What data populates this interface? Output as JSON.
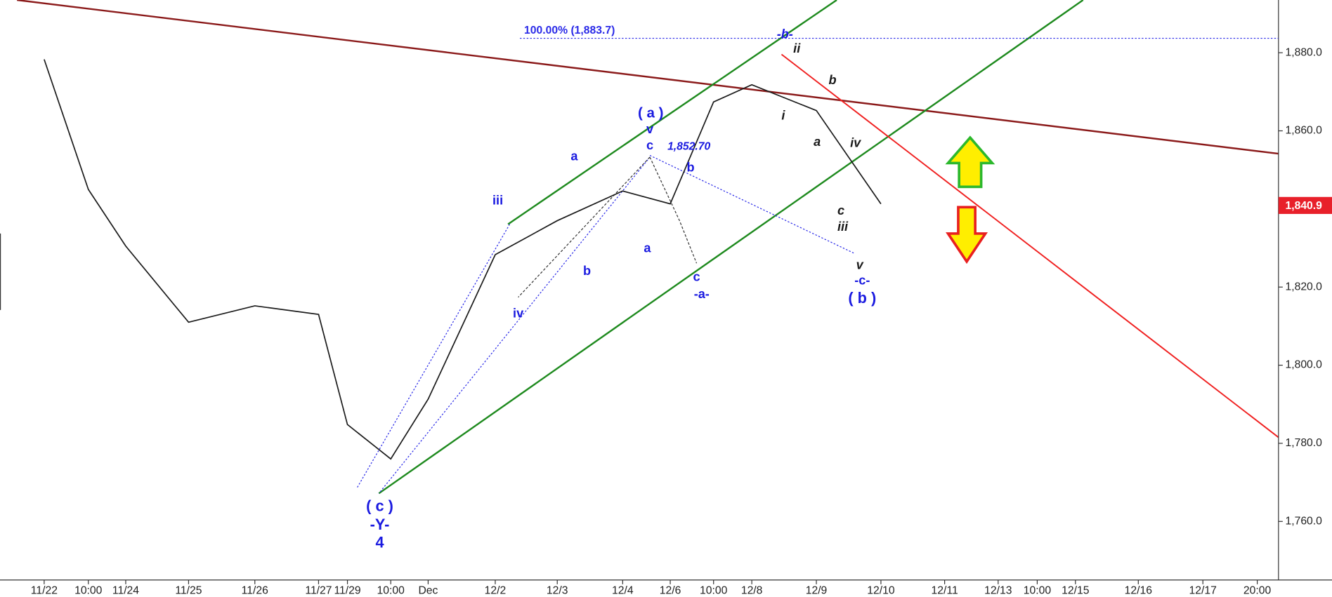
{
  "chart_data": {
    "type": "line",
    "categories": [
      "11/22",
      "10:00",
      "11/24",
      "11/25",
      "11/26",
      "11/27",
      "11/29",
      "10:00",
      "Dec",
      "12/2",
      "12/3",
      "12/4",
      "12/6",
      "10:00",
      "12/8",
      "12/9",
      "12/10",
      "12/11",
      "12/13",
      "10:00",
      "12/15",
      "12/16",
      "12/17",
      "20:00"
    ],
    "series": [
      {
        "color": "#1a1a1a",
        "values": [
          1878.3,
          1845,
          1830.5,
          1811,
          1815.2,
          1813,
          1784.8,
          1776,
          1791.3,
          1828.3,
          1837,
          1844.6,
          1841.3,
          1867.4,
          1871.8,
          1865.2,
          1841.3,
          null,
          null,
          null,
          null,
          null,
          null,
          null
        ]
      }
    ],
    "ylim": [
      1745,
      1893.5
    ],
    "yticks": [
      {
        "value": 1760,
        "label": "1,760.0"
      },
      {
        "value": 1780,
        "label": "1,780.0"
      },
      {
        "value": 1800,
        "label": "1,800.0"
      },
      {
        "value": 1820,
        "label": "1,820.0"
      },
      {
        "value": 1840,
        "label": "1,840.0"
      },
      {
        "value": 1860,
        "label": "1,860.0"
      },
      {
        "value": 1880,
        "label": "1,880.0"
      }
    ],
    "last_price": {
      "value": 1840.9,
      "label": "1,840.9",
      "color": "#e8202a"
    },
    "fib_level": {
      "value": 1883.7,
      "label": "100.00% (1,883.7)",
      "color": "#2a2ae8"
    },
    "annotations": [
      "( c )",
      "-Y-",
      "4",
      "iii",
      "iv",
      "a",
      "b",
      "( a )",
      "v",
      "c",
      "1,852.70",
      "b",
      "a",
      "c",
      "-a-",
      "-b-",
      "ii",
      "i",
      "b",
      "a",
      "iv",
      "c",
      "iii",
      "v",
      "-c-",
      "( b )"
    ]
  }
}
